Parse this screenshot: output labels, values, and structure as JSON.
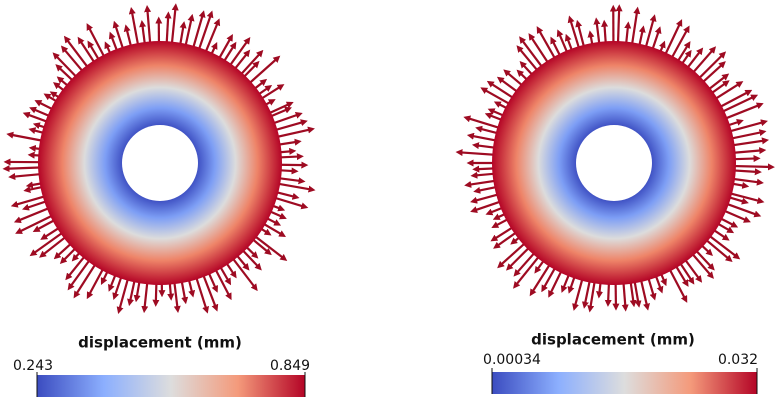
{
  "panels": [
    {
      "colorbar": {
        "title": "displacement (mm)",
        "min": 0.243,
        "max": 0.849
      }
    },
    {
      "colorbar": {
        "title": "displacement (mm)",
        "min": 0.00034,
        "max": 0.032
      }
    }
  ]
}
